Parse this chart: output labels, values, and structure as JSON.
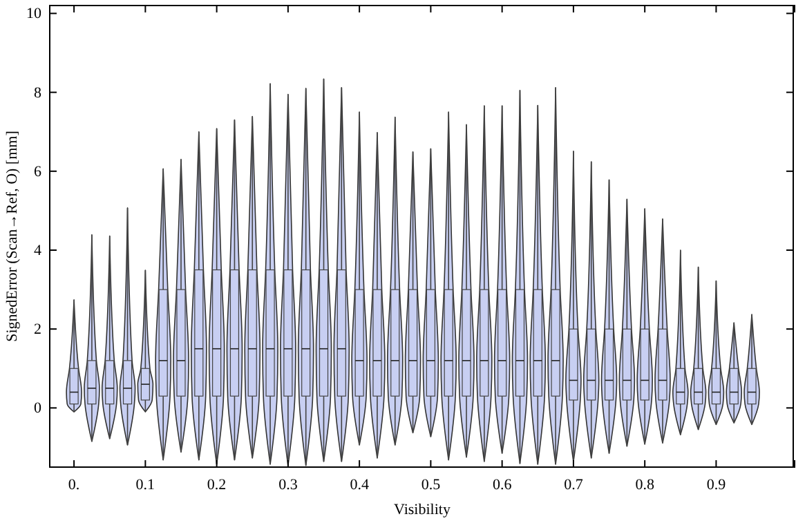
{
  "chart_data": {
    "type": "box",
    "xlabel": "Visibility",
    "ylabel": "SignedError (Scan→Ref, O) [mm]",
    "color": "#c8cff2",
    "x": [
      0,
      0.025,
      0.05,
      0.075,
      0.1,
      0.125,
      0.15,
      0.175,
      0.2,
      0.225,
      0.25,
      0.275,
      0.3,
      0.325,
      0.35,
      0.375,
      0.4,
      0.425,
      0.45,
      0.475,
      0.5,
      0.525,
      0.55,
      0.575,
      0.6,
      0.625,
      0.65,
      0.675,
      0.7,
      0.725,
      0.75,
      0.775,
      0.8,
      0.825,
      0.85,
      0.875,
      0.9,
      0.925,
      0.95
    ],
    "xlim": [
      -0.034,
      1.01
    ],
    "xticks": [
      {
        "value": 0,
        "label": "0."
      },
      0.1,
      0.2,
      0.3,
      0.4,
      0.5,
      0.6,
      0.7,
      0.8,
      0.9
    ],
    "boxes": [
      {
        "low": -0.1,
        "q1": 0.1,
        "median": 0.4,
        "q3": 1,
        "high": 2.74
      },
      {
        "low": -0.85,
        "q1": 0.1,
        "median": 0.5,
        "q3": 1.2,
        "high": 4.39
      },
      {
        "low": -0.78,
        "q1": 0.1,
        "median": 0.5,
        "q3": 1.2,
        "high": 4.36
      },
      {
        "low": -0.94,
        "q1": 0.1,
        "median": 0.5,
        "q3": 1.2,
        "high": 5.07
      },
      {
        "low": -0.1,
        "q1": 0.2,
        "median": 0.6,
        "q3": 1,
        "high": 3.49
      },
      {
        "low": -1.32,
        "q1": 0.3,
        "median": 1.2,
        "q3": 3,
        "high": 6.06
      },
      {
        "low": -1.12,
        "q1": 0.3,
        "median": 1.2,
        "q3": 3,
        "high": 6.3
      },
      {
        "low": -1.32,
        "q1": 0.3,
        "median": 1.5,
        "q3": 3.5,
        "high": 7
      },
      {
        "low": -1.43,
        "q1": 0.3,
        "median": 1.5,
        "q3": 3.5,
        "high": 7.08
      },
      {
        "low": -1.32,
        "q1": 0.3,
        "median": 1.5,
        "q3": 3.5,
        "high": 7.3
      },
      {
        "low": -1.27,
        "q1": 0.3,
        "median": 1.5,
        "q3": 3.5,
        "high": 7.39
      },
      {
        "low": -1.43,
        "q1": 0.3,
        "median": 1.5,
        "q3": 3.5,
        "high": 8.22
      },
      {
        "low": -1.46,
        "q1": 0.3,
        "median": 1.5,
        "q3": 3.5,
        "high": 7.95
      },
      {
        "low": -1.46,
        "q1": 0.3,
        "median": 1.5,
        "q3": 3.5,
        "high": 8.1
      },
      {
        "low": -1.36,
        "q1": 0.3,
        "median": 1.5,
        "q3": 3.5,
        "high": 8.34
      },
      {
        "low": -1.36,
        "q1": 0.3,
        "median": 1.5,
        "q3": 3.5,
        "high": 8.12
      },
      {
        "low": -0.94,
        "q1": 0.3,
        "median": 1.2,
        "q3": 3,
        "high": 7.5
      },
      {
        "low": -1.27,
        "q1": 0.3,
        "median": 1.2,
        "q3": 3,
        "high": 6.98
      },
      {
        "low": -0.94,
        "q1": 0.3,
        "median": 1.2,
        "q3": 3,
        "high": 7.37
      },
      {
        "low": -0.63,
        "q1": 0.3,
        "median": 1.2,
        "q3": 3,
        "high": 6.49
      },
      {
        "low": -0.73,
        "q1": 0.3,
        "median": 1.2,
        "q3": 3,
        "high": 6.57
      },
      {
        "low": -1.32,
        "q1": 0.3,
        "median": 1.2,
        "q3": 3,
        "high": 7.5
      },
      {
        "low": -1.25,
        "q1": 0.3,
        "median": 1.2,
        "q3": 3,
        "high": 7.18
      },
      {
        "low": -1.36,
        "q1": 0.3,
        "median": 1.2,
        "q3": 3,
        "high": 7.66
      },
      {
        "low": -1.15,
        "q1": 0.3,
        "median": 1.2,
        "q3": 3,
        "high": 7.66
      },
      {
        "low": -1.41,
        "q1": 0.3,
        "median": 1.2,
        "q3": 3,
        "high": 8.05
      },
      {
        "low": -1.43,
        "q1": 0.3,
        "median": 1.2,
        "q3": 3,
        "high": 7.67
      },
      {
        "low": -1.43,
        "q1": 0.3,
        "median": 1.2,
        "q3": 3,
        "high": 8.12
      },
      {
        "low": -1.36,
        "q1": 0.2,
        "median": 0.7,
        "q3": 2,
        "high": 6.51
      },
      {
        "low": -1.27,
        "q1": 0.2,
        "median": 0.7,
        "q3": 2,
        "high": 6.24
      },
      {
        "low": -1.15,
        "q1": 0.2,
        "median": 0.7,
        "q3": 2,
        "high": 5.78
      },
      {
        "low": -0.97,
        "q1": 0.2,
        "median": 0.7,
        "q3": 2,
        "high": 5.29
      },
      {
        "low": -0.92,
        "q1": 0.2,
        "median": 0.7,
        "q3": 2,
        "high": 5.05
      },
      {
        "low": -0.89,
        "q1": 0.2,
        "median": 0.7,
        "q3": 2,
        "high": 4.79
      },
      {
        "low": -0.68,
        "q1": 0.1,
        "median": 0.4,
        "q3": 1,
        "high": 4
      },
      {
        "low": -0.55,
        "q1": 0.1,
        "median": 0.4,
        "q3": 1,
        "high": 3.57
      },
      {
        "low": -0.42,
        "q1": 0.1,
        "median": 0.4,
        "q3": 1,
        "high": 3.22
      },
      {
        "low": -0.38,
        "q1": 0.1,
        "median": 0.4,
        "q3": 1,
        "high": 2.16
      },
      {
        "low": -0.42,
        "q1": 0.1,
        "median": 0.4,
        "q3": 1,
        "high": 2.37
      }
    ],
    "ylim": [
      -1.5,
      10.2
    ],
    "yticks": [
      0,
      2,
      4,
      6,
      8,
      10
    ]
  }
}
